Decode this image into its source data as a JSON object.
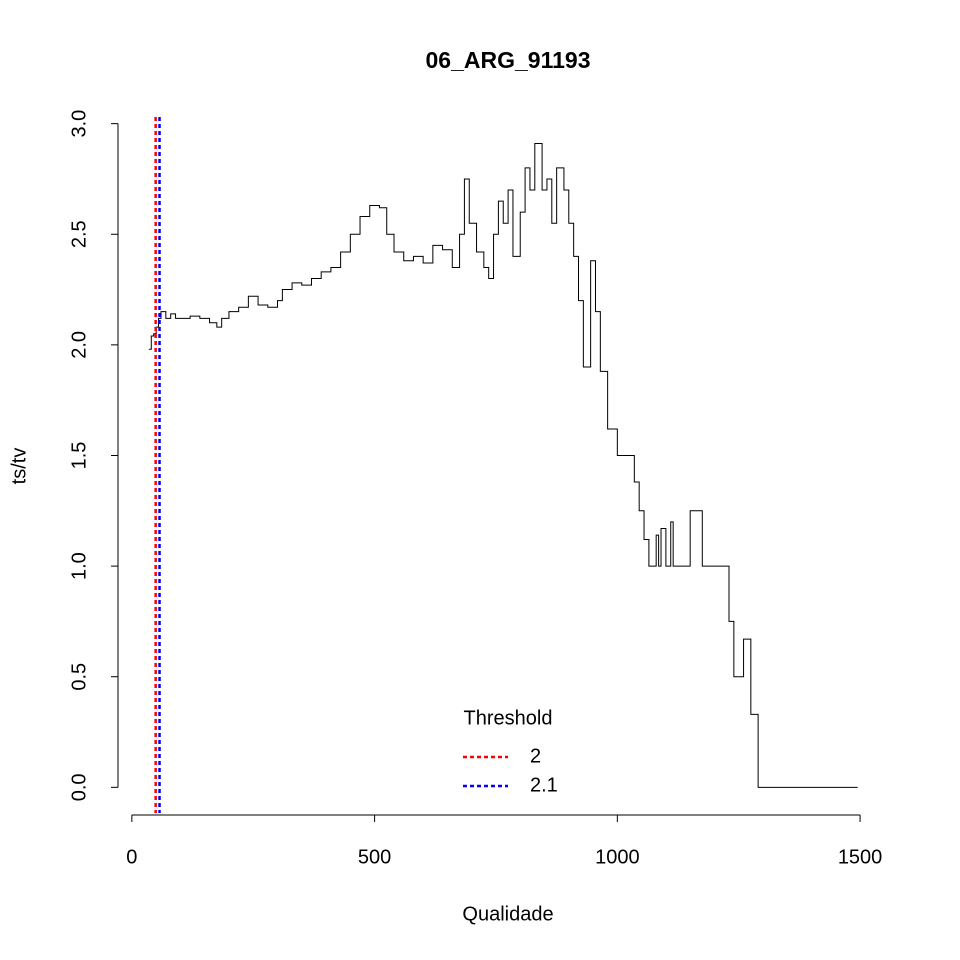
{
  "chart_data": {
    "type": "line",
    "step": true,
    "title": "06_ARG_91193",
    "xlabel": "Qualidade",
    "ylabel": "ts/tv",
    "x": [
      35,
      40,
      45,
      50,
      55,
      60,
      70,
      80,
      90,
      100,
      120,
      140,
      160,
      175,
      185,
      200,
      220,
      240,
      260,
      280,
      300,
      310,
      330,
      350,
      370,
      390,
      410,
      430,
      450,
      470,
      490,
      510,
      525,
      540,
      560,
      580,
      600,
      620,
      640,
      660,
      675,
      685,
      695,
      710,
      725,
      735,
      745,
      755,
      765,
      775,
      785,
      800,
      810,
      820,
      830,
      845,
      855,
      865,
      875,
      890,
      900,
      910,
      920,
      930,
      945,
      955,
      965,
      980,
      1000,
      1035,
      1045,
      1055,
      1065,
      1080,
      1085,
      1090,
      1100,
      1110,
      1115,
      1150,
      1175,
      1230,
      1240,
      1260,
      1275,
      1290,
      1495
    ],
    "series": [
      {
        "color": "#000000",
        "values": [
          1.98,
          2.04,
          2.05,
          2.08,
          2.12,
          2.15,
          2.12,
          2.14,
          2.12,
          2.12,
          2.13,
          2.12,
          2.1,
          2.08,
          2.12,
          2.15,
          2.17,
          2.22,
          2.18,
          2.17,
          2.2,
          2.25,
          2.28,
          2.27,
          2.3,
          2.33,
          2.35,
          2.42,
          2.5,
          2.58,
          2.63,
          2.62,
          2.5,
          2.42,
          2.38,
          2.4,
          2.37,
          2.45,
          2.43,
          2.35,
          2.5,
          2.75,
          2.55,
          2.42,
          2.35,
          2.3,
          2.5,
          2.65,
          2.55,
          2.7,
          2.4,
          2.6,
          2.8,
          2.7,
          2.91,
          2.7,
          2.75,
          2.55,
          2.8,
          2.7,
          2.55,
          2.4,
          2.2,
          1.9,
          2.38,
          2.15,
          1.88,
          1.62,
          1.5,
          1.38,
          1.25,
          1.12,
          1.0,
          1.14,
          1.0,
          1.17,
          1.0,
          1.2,
          1.0,
          1.25,
          1.0,
          0.75,
          0.5,
          0.67,
          0.33,
          0.0,
          0.0
        ]
      }
    ],
    "vlines": [
      {
        "name": "2",
        "x": 49,
        "color": "#ff0000"
      },
      {
        "name": "2.1",
        "x": 57,
        "color": "#0000ff"
      }
    ],
    "legend_title": "Threshold",
    "xlim": [
      -23.4,
      1553.4
    ],
    "ylim": [
      -0.116,
      3.03
    ],
    "xticks": [
      0,
      500,
      1000,
      1500
    ],
    "yticks": [
      {
        "value": 0,
        "label": "0.0"
      },
      0.5,
      {
        "value": 1,
        "label": "1.0"
      },
      1.5,
      {
        "value": 2,
        "label": "2.0"
      },
      2.5,
      {
        "value": 3,
        "label": "3.0"
      }
    ]
  }
}
